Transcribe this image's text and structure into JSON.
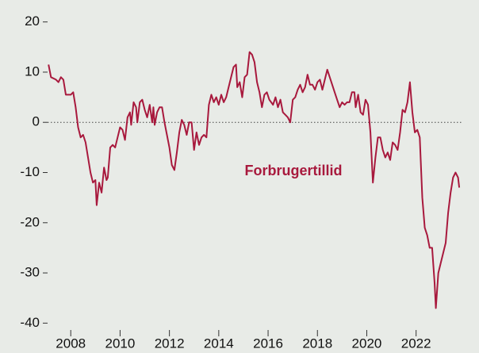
{
  "chart_data": {
    "type": "line",
    "x": [
      2007.1,
      2007.2,
      2007.4,
      2007.5,
      2007.6,
      2007.7,
      2007.8,
      2008.0,
      2008.1,
      2008.2,
      2008.3,
      2008.4,
      2008.5,
      2008.6,
      2008.7,
      2008.8,
      2008.9,
      2009.0,
      2009.05,
      2009.15,
      2009.25,
      2009.35,
      2009.45,
      2009.5,
      2009.6,
      2009.7,
      2009.8,
      2009.9,
      2010.0,
      2010.1,
      2010.2,
      2010.3,
      2010.4,
      2010.45,
      2010.55,
      2010.65,
      2010.7,
      2010.8,
      2010.9,
      2011.0,
      2011.1,
      2011.2,
      2011.3,
      2011.35,
      2011.4,
      2011.5,
      2011.6,
      2011.7,
      2011.8,
      2011.9,
      2012.0,
      2012.1,
      2012.2,
      2012.3,
      2012.4,
      2012.5,
      2012.6,
      2012.7,
      2012.8,
      2012.9,
      2013.0,
      2013.1,
      2013.2,
      2013.3,
      2013.4,
      2013.5,
      2013.6,
      2013.7,
      2013.8,
      2013.9,
      2014.0,
      2014.1,
      2014.2,
      2014.3,
      2014.4,
      2014.5,
      2014.6,
      2014.7,
      2014.75,
      2014.85,
      2014.95,
      2015.05,
      2015.15,
      2015.25,
      2015.35,
      2015.45,
      2015.55,
      2015.65,
      2015.75,
      2015.85,
      2015.95,
      2016.05,
      2016.2,
      2016.3,
      2016.4,
      2016.5,
      2016.6,
      2016.7,
      2016.8,
      2016.9,
      2017.0,
      2017.1,
      2017.2,
      2017.3,
      2017.4,
      2017.5,
      2017.6,
      2017.7,
      2017.8,
      2017.9,
      2018.0,
      2018.1,
      2018.2,
      2018.3,
      2018.4,
      2018.5,
      2018.6,
      2018.7,
      2018.8,
      2018.9,
      2019.0,
      2019.1,
      2019.2,
      2019.3,
      2019.4,
      2019.5,
      2019.55,
      2019.65,
      2019.75,
      2019.85,
      2019.95,
      2020.05,
      2020.15,
      2020.25,
      2020.35,
      2020.45,
      2020.55,
      2020.65,
      2020.75,
      2020.85,
      2020.95,
      2021.05,
      2021.15,
      2021.25,
      2021.35,
      2021.45,
      2021.55,
      2021.65,
      2021.75,
      2021.85,
      2021.95,
      2022.05,
      2022.15,
      2022.25,
      2022.35,
      2022.45,
      2022.55,
      2022.65,
      2022.75,
      2022.8,
      2022.9,
      2023.0,
      2023.1,
      2023.2,
      2023.3,
      2023.4,
      2023.5,
      2023.6,
      2023.7,
      2023.75
    ],
    "series": [
      {
        "name": "Forbrugertillid",
        "color": "#a8193d",
        "values": [
          11.5,
          9,
          8.5,
          8,
          9,
          8.5,
          5.5,
          5.5,
          6,
          3,
          -1,
          -3,
          -2.5,
          -4,
          -7,
          -10,
          -12,
          -11.5,
          -16.5,
          -12,
          -14,
          -9,
          -11.5,
          -11,
          -5,
          -4.5,
          -5,
          -3,
          -1,
          -1.5,
          -3.5,
          1,
          2,
          -0.5,
          4,
          3,
          0,
          4,
          4.5,
          2.5,
          1,
          3.5,
          0,
          3,
          -0.5,
          2,
          3,
          3,
          0,
          -2.5,
          -5,
          -8.5,
          -9.5,
          -6,
          -2,
          0.5,
          -0.5,
          -2.5,
          0,
          0,
          -5.5,
          -2,
          -4.5,
          -3,
          -2.5,
          -3,
          3.5,
          5.5,
          4,
          5,
          3.5,
          5.5,
          4,
          5,
          7,
          9,
          11,
          11.5,
          7,
          8,
          5,
          9,
          9.5,
          14,
          13.5,
          12,
          8,
          6,
          3,
          5.5,
          6,
          4.5,
          3.5,
          5,
          3,
          4.5,
          2,
          1.5,
          1,
          0,
          4.5,
          5,
          6.5,
          7.5,
          6,
          7,
          9.5,
          7.5,
          7.5,
          6.5,
          8,
          8.5,
          6.5,
          8.5,
          10.5,
          9,
          7.5,
          6,
          4.5,
          3,
          4,
          3.5,
          4,
          4,
          6,
          6,
          3,
          5.5,
          2,
          1.5,
          4.5,
          3.5,
          -2,
          -12,
          -7,
          -3,
          -3,
          -5.5,
          -7,
          -6,
          -7.5,
          -4,
          -4.5,
          -5.5,
          -2,
          2.5,
          2,
          4,
          8,
          2,
          -2,
          -1.5,
          -3,
          -15,
          -21,
          -22.5,
          -25,
          -25,
          -32,
          -37,
          -30,
          -28,
          -26,
          -24,
          -18,
          -14,
          -11,
          -10,
          -11,
          -13
        ]
      }
    ],
    "xlim": [
      2006.9,
      2024.1
    ],
    "xticks": [
      2008,
      2010,
      2012,
      2014,
      2016,
      2018,
      2020,
      2022
    ],
    "ylim": [
      -42,
      22
    ],
    "yticks": [
      20,
      10,
      0,
      -10,
      -20,
      -30,
      -40
    ],
    "zero_line": true
  }
}
